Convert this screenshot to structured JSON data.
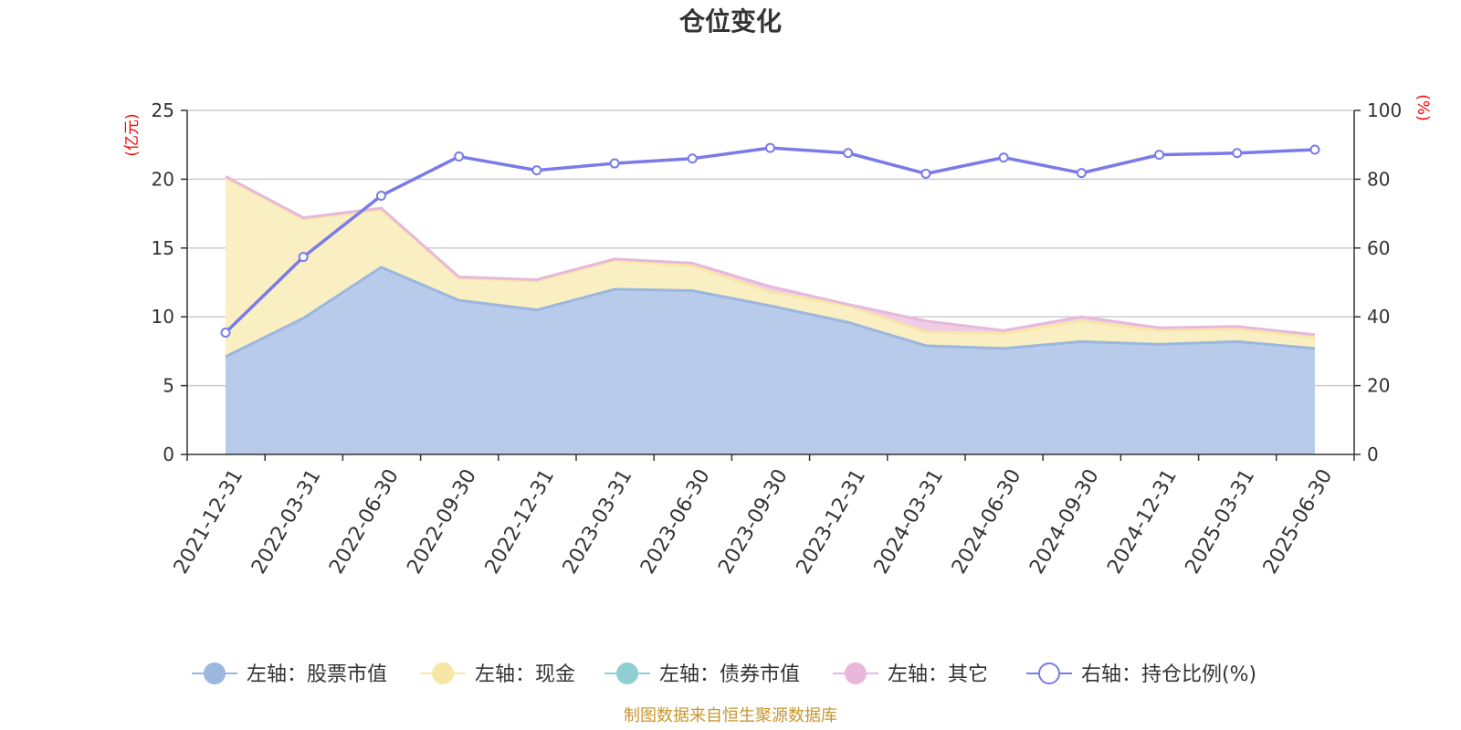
{
  "chart_data": {
    "type": "area",
    "title": "仓位变化",
    "x": [
      "2021-12-31",
      "2022-03-31",
      "2022-06-30",
      "2022-09-30",
      "2022-12-31",
      "2023-03-31",
      "2023-06-30",
      "2023-09-30",
      "2023-12-31",
      "2024-03-31",
      "2024-06-30",
      "2024-09-30",
      "2024-12-31",
      "2025-03-31",
      "2025-06-30"
    ],
    "left_axis": {
      "unit": "(亿元)",
      "ylim": [
        0,
        25
      ],
      "ticks": [
        0,
        5,
        10,
        15,
        20,
        25
      ]
    },
    "right_axis": {
      "unit": "(%)",
      "ylim": [
        0,
        100
      ],
      "ticks": [
        0,
        20,
        40,
        60,
        80,
        100
      ]
    },
    "series": [
      {
        "name": "左轴：股票市值",
        "axis": "left",
        "stack": true,
        "color": "#9bb7e0",
        "fill": "#b8cbea",
        "values": [
          7.1,
          9.9,
          13.6,
          11.2,
          10.5,
          12.0,
          11.9,
          10.8,
          9.6,
          7.9,
          7.7,
          8.2,
          8.0,
          8.2,
          7.7
        ]
      },
      {
        "name": "左轴：现金",
        "axis": "left",
        "stack": true,
        "color": "#f7e7a6",
        "fill": "#faefc2",
        "values": [
          13.0,
          7.2,
          4.2,
          1.6,
          2.1,
          2.1,
          1.8,
          1.0,
          1.2,
          1.0,
          1.1,
          1.5,
          1.0,
          0.9,
          0.8
        ]
      },
      {
        "name": "左轴：债券市值",
        "axis": "left",
        "stack": true,
        "color": "#8fcfd2",
        "fill": "#b5e0e2",
        "values": [
          0,
          0,
          0,
          0,
          0,
          0,
          0,
          0,
          0,
          0,
          0,
          0,
          0,
          0,
          0
        ]
      },
      {
        "name": "左轴：其它",
        "axis": "left",
        "stack": true,
        "color": "#e8b8da",
        "fill": "#f0cde6",
        "values": [
          0.1,
          0.1,
          0.1,
          0.1,
          0.1,
          0.1,
          0.2,
          0.4,
          0.1,
          0.8,
          0.2,
          0.3,
          0.2,
          0.2,
          0.2
        ]
      },
      {
        "name": "右轴：持仓比例(%)",
        "axis": "right",
        "stack": false,
        "color": "#7a7ae8",
        "values": [
          35.4,
          57.4,
          75.2,
          86.6,
          82.6,
          84.6,
          86.0,
          89.1,
          87.6,
          81.6,
          86.3,
          81.8,
          87.1,
          87.6,
          88.6
        ]
      }
    ],
    "grid": true,
    "legend_position": "bottom",
    "footer": "制图数据来自恒生聚源数据库"
  }
}
